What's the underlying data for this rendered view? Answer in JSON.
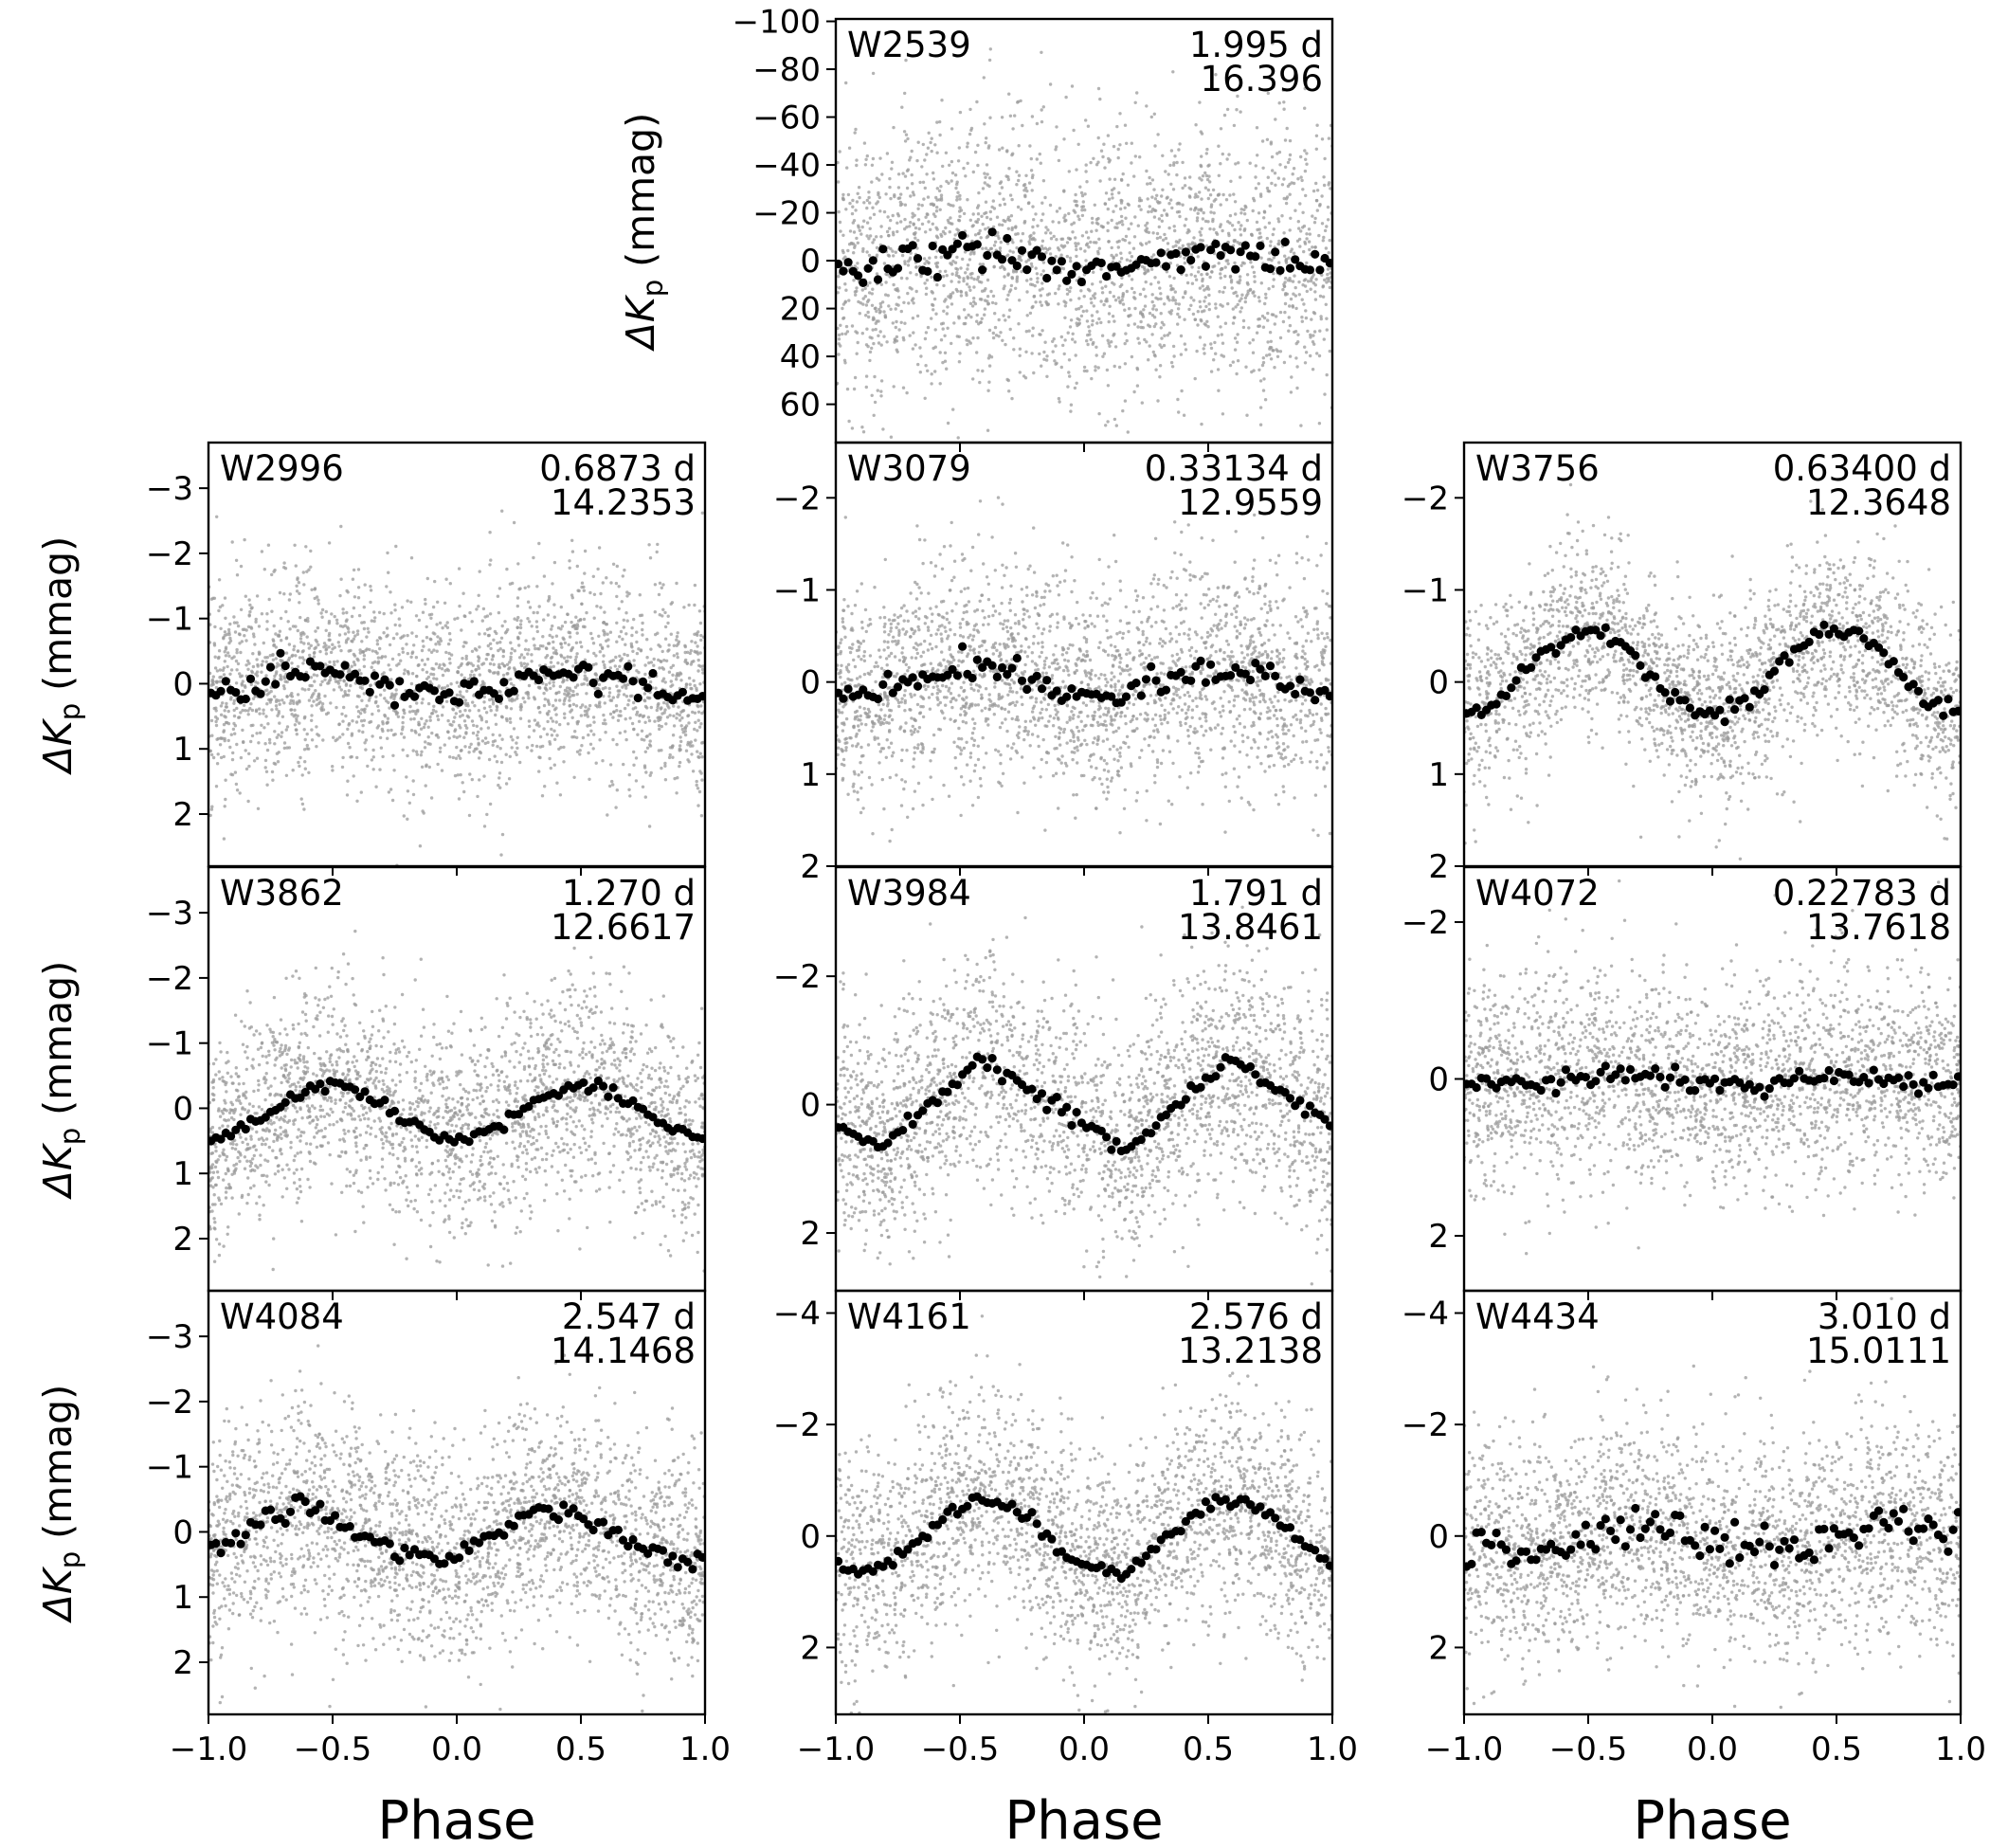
{
  "figure": {
    "xlabel": "Phase",
    "ylabel_prefix": "ΔK",
    "ylabel_sub": "p",
    "ylabel_suffix": " (mmag)"
  },
  "chart_data": [
    {
      "type": "scatter",
      "id": "W2539",
      "period": "1.995 d",
      "mag": "16.396",
      "xlim": [
        -1.0,
        1.0
      ],
      "ylim": [
        76,
        -101
      ],
      "yticks": [
        -100,
        -80,
        -60,
        -40,
        -20,
        0,
        20,
        40,
        60
      ],
      "ytick_labels": [
        "−100",
        "−80",
        "−60",
        "−40",
        "−20",
        "0",
        "20",
        "40",
        "60"
      ],
      "show_ylabel": true,
      "show_xticklabels": false,
      "show_xlabel": false,
      "binned": {
        "shape": "single",
        "amplitude": 3,
        "phase_peak": -0.45,
        "offset": 0,
        "noise": 4
      },
      "raw_scatter": 28
    },
    {
      "type": "scatter",
      "id": "W2996",
      "period": "0.6873 d",
      "mag": "14.2353",
      "xlim": [
        -1.0,
        1.0
      ],
      "ylim": [
        2.8,
        -3.7
      ],
      "yticks": [
        -3,
        -2,
        -1,
        0,
        1,
        2
      ],
      "ytick_labels": [
        "−3",
        "−2",
        "−1",
        "0",
        "1",
        "2"
      ],
      "show_ylabel": true,
      "show_xticklabels": false,
      "show_xlabel": false,
      "binned": {
        "shape": "single",
        "amplitude": 0.2,
        "phase_peak": -0.55,
        "offset": 0,
        "noise": 0.1
      },
      "raw_scatter": 0.8
    },
    {
      "type": "scatter",
      "id": "W3079",
      "period": "0.33134 d",
      "mag": "12.9559",
      "xlim": [
        -1.0,
        1.0
      ],
      "ylim": [
        2,
        -2.6
      ],
      "yticks": [
        -2,
        -1,
        0,
        1,
        2
      ],
      "ytick_labels": [
        "−2",
        "−1",
        "0",
        "1",
        "2"
      ],
      "show_ylabel": false,
      "show_xticklabels": false,
      "show_xlabel": false,
      "binned": {
        "shape": "single",
        "amplitude": 0.15,
        "phase_peak": -0.45,
        "offset": 0,
        "noise": 0.07
      },
      "raw_scatter": 0.6
    },
    {
      "type": "scatter",
      "id": "W3756",
      "period": "0.63400 d",
      "mag": "12.3648",
      "xlim": [
        -1.0,
        1.0
      ],
      "ylim": [
        2,
        -2.6
      ],
      "yticks": [
        -2,
        -1,
        0,
        1,
        2
      ],
      "ytick_labels": [
        "−2",
        "−1",
        "0",
        "1",
        "2"
      ],
      "show_ylabel": false,
      "show_xticklabels": false,
      "show_xlabel": false,
      "binned": {
        "shape": "single",
        "amplitude": 0.45,
        "phase_peak": -0.5,
        "offset": -0.1,
        "noise": 0.05
      },
      "raw_scatter": 0.5
    },
    {
      "type": "scatter",
      "id": "W3862",
      "period": "1.270 d",
      "mag": "12.6617",
      "xlim": [
        -1.0,
        1.0
      ],
      "ylim": [
        2.8,
        -3.7
      ],
      "yticks": [
        -3,
        -2,
        -1,
        0,
        1,
        2
      ],
      "ytick_labels": [
        "−3",
        "−2",
        "−1",
        "0",
        "1",
        "2"
      ],
      "show_ylabel": true,
      "show_xticklabels": false,
      "show_xlabel": false,
      "binned": {
        "shape": "single",
        "amplitude": 0.4,
        "phase_peak": -0.5,
        "offset": 0.05,
        "noise": 0.05
      },
      "raw_scatter": 0.8
    },
    {
      "type": "scatter",
      "id": "W3984",
      "period": "1.791 d",
      "mag": "13.8461",
      "xlim": [
        -1.0,
        1.0
      ],
      "ylim": [
        2.9,
        -3.7
      ],
      "yticks": [
        -2,
        0,
        2
      ],
      "ytick_labels": [
        "−2",
        "0",
        "2"
      ],
      "show_ylabel": false,
      "show_xticklabels": false,
      "show_xlabel": false,
      "binned": {
        "shape": "saw",
        "amplitude": 0.7,
        "phase_peak": -0.42,
        "offset": 0,
        "noise": 0.06
      },
      "raw_scatter": 0.9
    },
    {
      "type": "scatter",
      "id": "W4072",
      "period": "0.22783 d",
      "mag": "13.7618",
      "xlim": [
        -1.0,
        1.0
      ],
      "ylim": [
        2.7,
        -2.7
      ],
      "yticks": [
        -2,
        0,
        2
      ],
      "ytick_labels": [
        "−2",
        "0",
        "2"
      ],
      "show_ylabel": false,
      "show_xticklabels": false,
      "show_xlabel": false,
      "binned": {
        "shape": "single",
        "amplitude": 0.06,
        "phase_peak": -0.4,
        "offset": 0.02,
        "noise": 0.07
      },
      "raw_scatter": 0.7
    },
    {
      "type": "scatter",
      "id": "W4084",
      "period": "2.547 d",
      "mag": "14.1468",
      "xlim": [
        -1.0,
        1.0
      ],
      "ylim": [
        2.8,
        -3.7
      ],
      "yticks": [
        -3,
        -2,
        -1,
        0,
        1,
        2
      ],
      "ytick_labels": [
        "−3",
        "−2",
        "−1",
        "0",
        "1",
        "2"
      ],
      "show_ylabel": true,
      "show_xticklabels": true,
      "show_xlabel": true,
      "binned": {
        "shape": "saw",
        "amplitude": 0.45,
        "phase_peak": -0.65,
        "offset": 0.05,
        "noise": 0.08
      },
      "raw_scatter": 0.85
    },
    {
      "type": "scatter",
      "id": "W4161",
      "period": "2.576 d",
      "mag": "13.2138",
      "xlim": [
        -1.0,
        1.0
      ],
      "ylim": [
        3.2,
        -4.4
      ],
      "yticks": [
        -4,
        -2,
        0,
        2
      ],
      "ytick_labels": [
        "−4",
        "−2",
        "0",
        "2"
      ],
      "show_ylabel": false,
      "show_xticklabels": true,
      "show_xlabel": true,
      "binned": {
        "shape": "single",
        "amplitude": 0.65,
        "phase_peak": -0.4,
        "offset": 0.0,
        "noise": 0.06
      },
      "raw_scatter": 1.0
    },
    {
      "type": "scatter",
      "id": "W4434",
      "period": "3.010 d",
      "mag": "15.0111",
      "xlim": [
        -1.0,
        1.0
      ],
      "ylim": [
        3.2,
        -4.4
      ],
      "yticks": [
        -4,
        -2,
        0,
        2
      ],
      "ytick_labels": [
        "−4",
        "−2",
        "0",
        "2"
      ],
      "show_ylabel": false,
      "show_xticklabels": true,
      "show_xlabel": true,
      "binned": {
        "shape": "single",
        "amplitude": 0.2,
        "phase_peak": -0.3,
        "offset": 0.05,
        "noise": 0.2
      },
      "raw_scatter": 1.0
    }
  ],
  "xticks": [
    -1.0,
    -0.5,
    0.0,
    0.5,
    1.0
  ],
  "xtick_labels": [
    "−1.0",
    "−0.5",
    "0.0",
    "0.5",
    "1.0"
  ]
}
